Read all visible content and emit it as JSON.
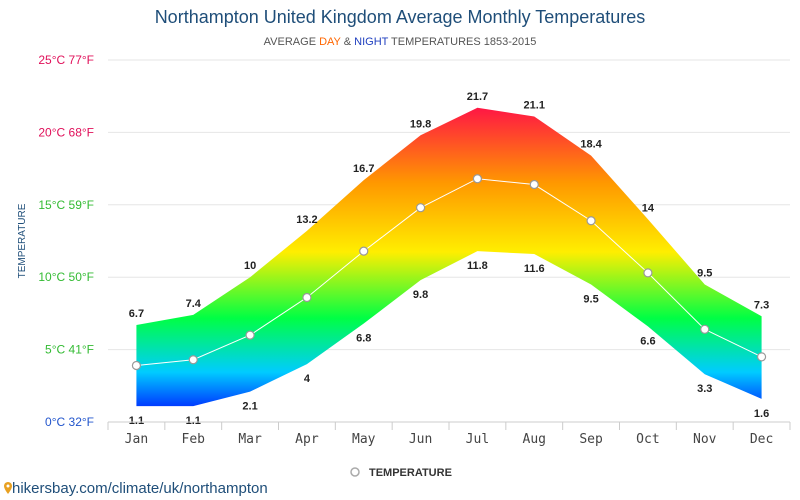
{
  "header": {
    "title": "Northampton United Kingdom Average Monthly Temperatures",
    "subtitle_prefix": "AVERAGE ",
    "subtitle_day": "DAY",
    "subtitle_and": " & ",
    "subtitle_night": "NIGHT",
    "subtitle_suffix": " TEMPERATURES 1853-2015"
  },
  "footer": {
    "link_text": "hikersbay.com/climate/uk/northampton",
    "icon": "map-pin-icon"
  },
  "chart_data": {
    "type": "area",
    "title": "Northampton United Kingdom Average Monthly Temperatures",
    "subtitle": "AVERAGE DAY & NIGHT TEMPERATURES 1853-2015",
    "ylabel": "TEMPERATURE",
    "xlabel": "",
    "categories": [
      "Jan",
      "Feb",
      "Mar",
      "Apr",
      "May",
      "Jun",
      "Jul",
      "Aug",
      "Sep",
      "Oct",
      "Nov",
      "Dec"
    ],
    "series": [
      {
        "name": "DAY",
        "values": [
          6.7,
          7.4,
          10,
          13.2,
          16.7,
          19.8,
          21.7,
          21.1,
          18.4,
          14,
          9.5,
          7.3
        ]
      },
      {
        "name": "NIGHT",
        "values": [
          1.1,
          1.1,
          2.1,
          4,
          6.8,
          9.8,
          11.8,
          11.6,
          9.5,
          6.6,
          3.3,
          1.6
        ]
      },
      {
        "name": "TEMPERATURE",
        "values": [
          3.9,
          4.3,
          6.0,
          8.6,
          11.8,
          14.8,
          16.8,
          16.4,
          13.9,
          10.3,
          6.4,
          4.5
        ]
      }
    ],
    "ylim": [
      0,
      25
    ],
    "yticks": [
      {
        "value": 0,
        "label": "0°C 32°F",
        "color": "#2255cc"
      },
      {
        "value": 5,
        "label": "5°C 41°F",
        "color": "#33bb33"
      },
      {
        "value": 10,
        "label": "10°C 50°F",
        "color": "#33bb33"
      },
      {
        "value": 15,
        "label": "15°C 59°F",
        "color": "#33bb33"
      },
      {
        "value": 20,
        "label": "20°C 68°F",
        "color": "#e0105a"
      },
      {
        "value": 25,
        "label": "25°C 77°F",
        "color": "#e0105a"
      }
    ],
    "grid": true,
    "legend": {
      "position": "bottom-center",
      "label": "TEMPERATURE"
    },
    "colors": {
      "hot": "#ff1744",
      "warm": "#ff9800",
      "mild": "#ffee00",
      "cool": "#00ff44",
      "cold": "#00ccff",
      "freezing": "#0033ff",
      "line": "#ffffff",
      "marker_stroke": "#999999",
      "grid": "#e6e6e6"
    }
  }
}
